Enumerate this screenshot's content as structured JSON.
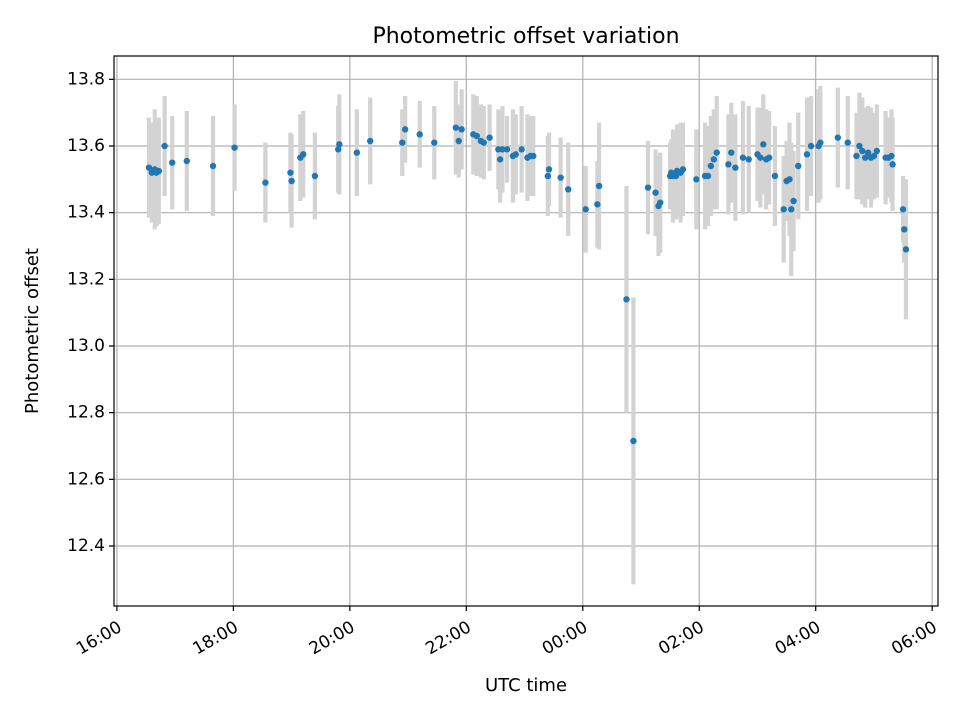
{
  "chart_data": {
    "type": "scatter",
    "title": "Photometric offset variation",
    "xlabel": "UTC time",
    "ylabel": "Photometric offset",
    "grid": true,
    "x_unit": "hours since 16:00 UTC",
    "xlim": [
      -0.05,
      14.1
    ],
    "ylim": [
      12.22,
      13.87
    ],
    "x_ticks": [
      {
        "value": 0,
        "label": "16:00"
      },
      {
        "value": 2,
        "label": "18:00"
      },
      {
        "value": 4,
        "label": "20:00"
      },
      {
        "value": 6,
        "label": "22:00"
      },
      {
        "value": 8,
        "label": "00:00"
      },
      {
        "value": 10,
        "label": "02:00"
      },
      {
        "value": 12,
        "label": "04:00"
      },
      {
        "value": 14,
        "label": "06:00"
      }
    ],
    "y_ticks": [
      {
        "value": 12.4,
        "label": "12.4"
      },
      {
        "value": 12.6,
        "label": "12.6"
      },
      {
        "value": 12.8,
        "label": "12.8"
      },
      {
        "value": 13.0,
        "label": "13.0"
      },
      {
        "value": 13.2,
        "label": "13.2"
      },
      {
        "value": 13.4,
        "label": "13.4"
      },
      {
        "value": 13.6,
        "label": "13.6"
      },
      {
        "value": 13.8,
        "label": "13.8"
      }
    ],
    "colors": {
      "point": "#1f77b4",
      "errorbar": "#d3d3d3",
      "grid": "#b0b0b0",
      "axis": "#000000"
    },
    "series": [
      {
        "name": "photometric offset",
        "points": [
          [
            0.55,
            13.535,
            0.15
          ],
          [
            0.6,
            13.52,
            0.15
          ],
          [
            0.65,
            13.53,
            0.18
          ],
          [
            0.68,
            13.52,
            0.16
          ],
          [
            0.72,
            13.525,
            0.16
          ],
          [
            0.82,
            13.6,
            0.15
          ],
          [
            0.95,
            13.55,
            0.14
          ],
          [
            1.2,
            13.555,
            0.15
          ],
          [
            1.65,
            13.54,
            0.15
          ],
          [
            2.02,
            13.595,
            0.13
          ],
          [
            2.55,
            13.49,
            0.12
          ],
          [
            2.98,
            13.52,
            0.12
          ],
          [
            3.0,
            13.495,
            0.14
          ],
          [
            3.15,
            13.565,
            0.13
          ],
          [
            3.2,
            13.575,
            0.13
          ],
          [
            3.4,
            13.51,
            0.13
          ],
          [
            3.8,
            13.59,
            0.13
          ],
          [
            3.82,
            13.605,
            0.15
          ],
          [
            4.12,
            13.58,
            0.13
          ],
          [
            4.35,
            13.615,
            0.13
          ],
          [
            4.9,
            13.61,
            0.1
          ],
          [
            4.95,
            13.65,
            0.1
          ],
          [
            5.2,
            13.635,
            0.1
          ],
          [
            5.45,
            13.61,
            0.11
          ],
          [
            5.82,
            13.655,
            0.14
          ],
          [
            5.87,
            13.615,
            0.11
          ],
          [
            5.92,
            13.65,
            0.12
          ],
          [
            6.12,
            13.635,
            0.12
          ],
          [
            6.18,
            13.63,
            0.12
          ],
          [
            6.25,
            13.615,
            0.11
          ],
          [
            6.3,
            13.61,
            0.11
          ],
          [
            6.4,
            13.625,
            0.1
          ],
          [
            6.55,
            13.59,
            0.12
          ],
          [
            6.58,
            13.56,
            0.13
          ],
          [
            6.62,
            13.59,
            0.13
          ],
          [
            6.7,
            13.59,
            0.1
          ],
          [
            6.8,
            13.57,
            0.14
          ],
          [
            6.85,
            13.575,
            0.12
          ],
          [
            6.95,
            13.59,
            0.13
          ],
          [
            7.05,
            13.565,
            0.13
          ],
          [
            7.1,
            13.57,
            0.12
          ],
          [
            7.15,
            13.57,
            0.12
          ],
          [
            7.4,
            13.51,
            0.12
          ],
          [
            7.42,
            13.53,
            0.11
          ],
          [
            7.62,
            13.505,
            0.12
          ],
          [
            7.75,
            13.47,
            0.14
          ],
          [
            8.05,
            13.41,
            0.13
          ],
          [
            8.25,
            13.425,
            0.13
          ],
          [
            8.28,
            13.48,
            0.19
          ],
          [
            8.75,
            13.14,
            0.34
          ],
          [
            8.87,
            12.715,
            0.43
          ],
          [
            9.12,
            13.475,
            0.14
          ],
          [
            9.25,
            13.46,
            0.13
          ],
          [
            9.3,
            13.42,
            0.15
          ],
          [
            9.33,
            13.43,
            0.15
          ],
          [
            9.5,
            13.51,
            0.1
          ],
          [
            9.52,
            13.52,
            0.1
          ],
          [
            9.55,
            13.51,
            0.14
          ],
          [
            9.6,
            13.51,
            0.13
          ],
          [
            9.62,
            13.525,
            0.14
          ],
          [
            9.68,
            13.52,
            0.15
          ],
          [
            9.72,
            13.53,
            0.14
          ],
          [
            9.95,
            13.5,
            0.15
          ],
          [
            10.1,
            13.51,
            0.16
          ],
          [
            10.15,
            13.51,
            0.15
          ],
          [
            10.2,
            13.54,
            0.15
          ],
          [
            10.25,
            13.56,
            0.15
          ],
          [
            10.3,
            13.58,
            0.17
          ],
          [
            10.5,
            13.545,
            0.15
          ],
          [
            10.55,
            13.58,
            0.15
          ],
          [
            10.62,
            13.535,
            0.16
          ],
          [
            10.75,
            13.565,
            0.17
          ],
          [
            10.85,
            13.56,
            0.16
          ],
          [
            11.0,
            13.575,
            0.14
          ],
          [
            11.05,
            13.565,
            0.15
          ],
          [
            11.1,
            13.605,
            0.15
          ],
          [
            11.15,
            13.56,
            0.15
          ],
          [
            11.2,
            13.565,
            0.14
          ],
          [
            11.3,
            13.51,
            0.15
          ],
          [
            11.45,
            13.41,
            0.16
          ],
          [
            11.5,
            13.495,
            0.12
          ],
          [
            11.55,
            13.5,
            0.17
          ],
          [
            11.58,
            13.41,
            0.2
          ],
          [
            11.62,
            13.435,
            0.15
          ],
          [
            11.7,
            13.54,
            0.16
          ],
          [
            11.85,
            13.575,
            0.17
          ],
          [
            11.92,
            13.6,
            0.15
          ],
          [
            12.05,
            13.6,
            0.17
          ],
          [
            12.08,
            13.61,
            0.17
          ],
          [
            12.38,
            13.625,
            0.15
          ],
          [
            12.55,
            13.61,
            0.14
          ],
          [
            12.7,
            13.57,
            0.13
          ],
          [
            12.75,
            13.6,
            0.16
          ],
          [
            12.8,
            13.585,
            0.16
          ],
          [
            12.85,
            13.565,
            0.15
          ],
          [
            12.9,
            13.58,
            0.14
          ],
          [
            12.95,
            13.565,
            0.15
          ],
          [
            13.0,
            13.57,
            0.13
          ],
          [
            13.05,
            13.585,
            0.14
          ],
          [
            13.2,
            13.565,
            0.14
          ],
          [
            13.25,
            13.565,
            0.12
          ],
          [
            13.3,
            13.57,
            0.14
          ],
          [
            13.32,
            13.545,
            0.14
          ],
          [
            13.5,
            13.41,
            0.1
          ],
          [
            13.52,
            13.35,
            0.1
          ],
          [
            13.55,
            13.29,
            0.21
          ]
        ]
      }
    ]
  }
}
